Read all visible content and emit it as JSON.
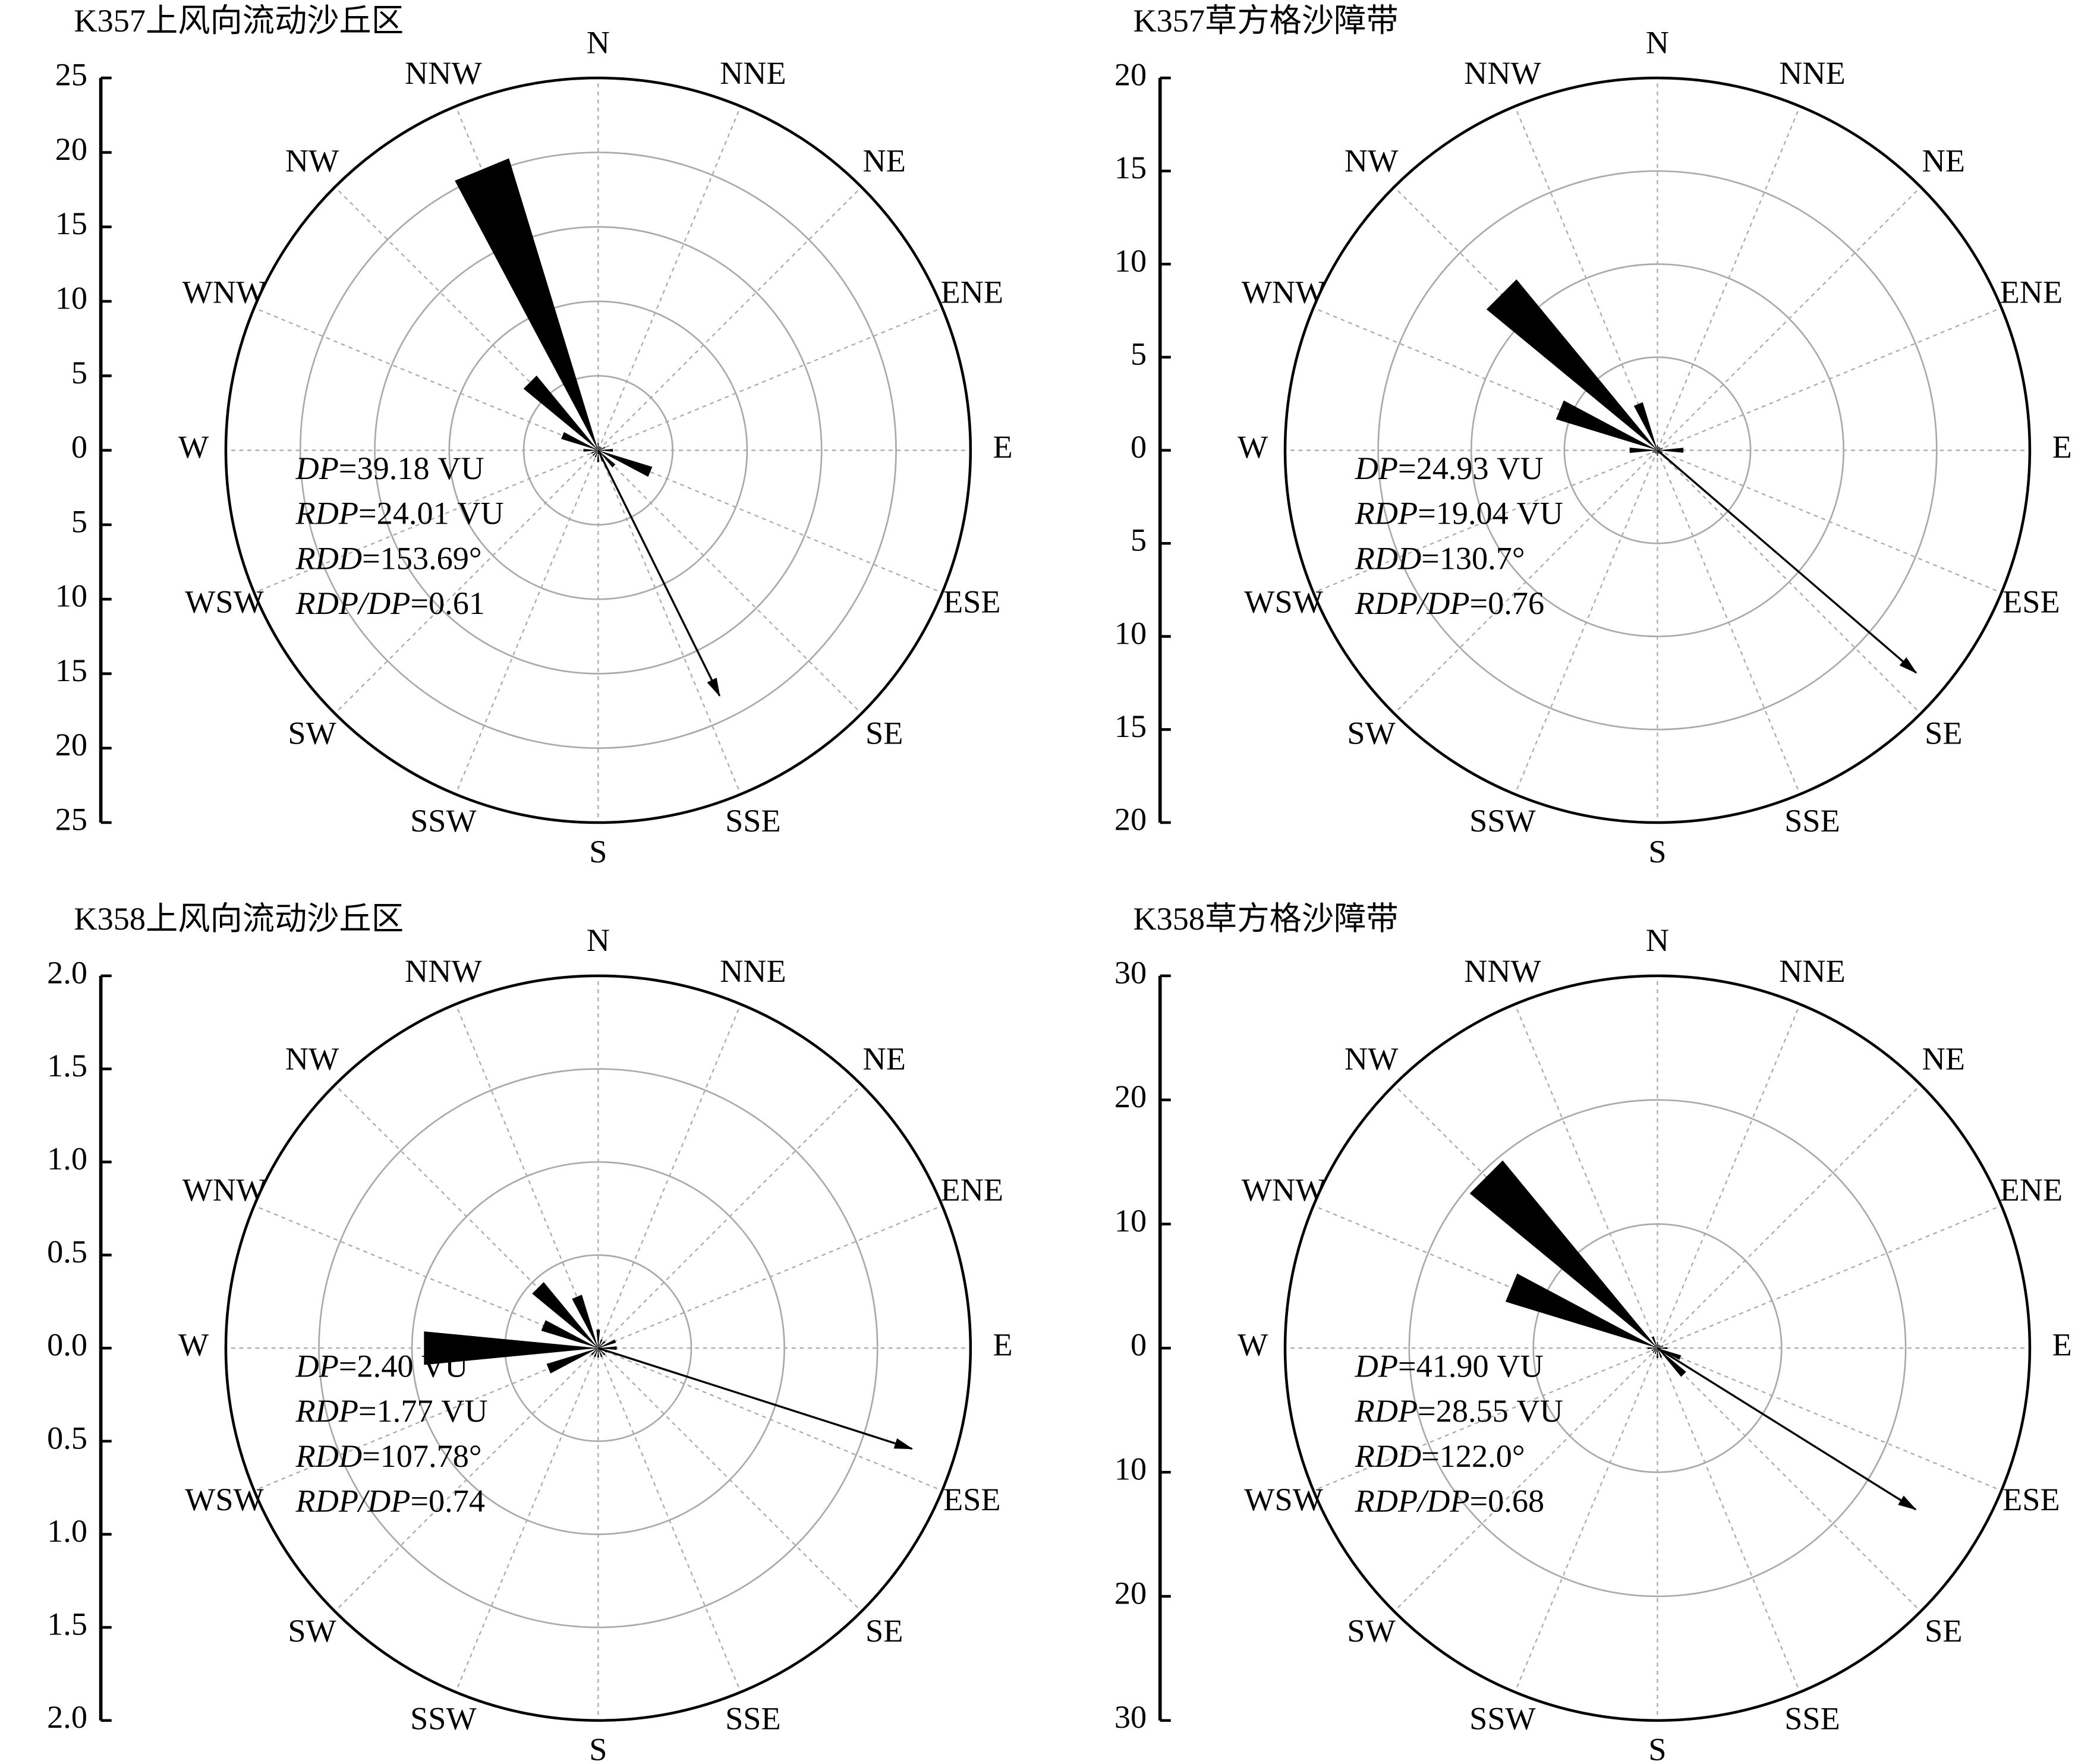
{
  "chart_data": [
    {
      "type": "rose",
      "title": "K357上风向流动沙丘区",
      "directions": [
        "N",
        "NNE",
        "NE",
        "ENE",
        "E",
        "ESE",
        "SE",
        "SSE",
        "S",
        "SSW",
        "SW",
        "WSW",
        "W",
        "WNW",
        "NW",
        "NNW"
      ],
      "values": [
        0.5,
        0.3,
        0.3,
        0.5,
        1,
        3.8,
        1.5,
        0.8,
        0.8,
        0.5,
        0.5,
        0.5,
        1,
        2.6,
        6.5,
        20.5
      ],
      "color": "#000000",
      "ylim": [
        0,
        25
      ],
      "yticks": [
        0,
        5,
        10,
        15,
        20,
        25
      ],
      "grid": true,
      "stats": [
        {
          "name": "DP",
          "sign": "=",
          "value": 39.18,
          "unit": "VU"
        },
        {
          "name": "RDP",
          "sign": "=",
          "value": 24.01,
          "unit": "VU"
        },
        {
          "name": "RDD",
          "sign": "=",
          "value": 153.69,
          "unit": "°"
        },
        {
          "name": "RDP/DP",
          "sign": "=",
          "value": 0.61
        }
      ]
    },
    {
      "type": "rose",
      "title": "K357草方格沙障带",
      "directions": [
        "N",
        "NNE",
        "NE",
        "ENE",
        "E",
        "ESE",
        "SE",
        "SSE",
        "S",
        "SSW",
        "SW",
        "WSW",
        "W",
        "WNW",
        "NW",
        "NNW"
      ],
      "values": [
        0.3,
        0.2,
        0.2,
        0.3,
        1.4,
        0.3,
        0.2,
        0.2,
        0.3,
        0.2,
        0.2,
        0.3,
        1.5,
        5.7,
        11.9,
        2.7
      ],
      "color": "#000000",
      "ylim": [
        0,
        20
      ],
      "yticks": [
        0,
        5,
        10,
        15,
        20
      ],
      "grid": true,
      "stats": [
        {
          "name": "DP",
          "sign": "=",
          "value": 24.93,
          "unit": "VU"
        },
        {
          "name": "RDP",
          "sign": "=",
          "value": 19.04,
          "unit": "VU"
        },
        {
          "name": "RDD",
          "sign": "=",
          "value": 130.7,
          "unit": "°"
        },
        {
          "name": "RDP/DP",
          "sign": "=",
          "value": 0.76
        }
      ]
    },
    {
      "type": "rose",
      "title": "K358上风向流动沙丘区",
      "directions": [
        "N",
        "NNE",
        "NE",
        "ENE",
        "E",
        "ESE",
        "SE",
        "SSE",
        "S",
        "SSW",
        "SW",
        "WSW",
        "W",
        "WNW",
        "NW",
        "NNW"
      ],
      "values": [
        0.1,
        0.05,
        0.05,
        0.1,
        0.1,
        0.05,
        0.05,
        0.05,
        0.05,
        0.05,
        0.05,
        0.29,
        0.94,
        0.32,
        0.46,
        0.3
      ],
      "color": "#000000",
      "ylim": [
        0,
        2.0
      ],
      "yticks": [
        {
          "value": 0,
          "label": "0.0"
        },
        0.5,
        {
          "value": 1,
          "label": "1.0"
        },
        1.5,
        {
          "value": 2,
          "label": "2.0"
        }
      ],
      "grid": true,
      "stats": [
        {
          "name": "DP",
          "sign": "=",
          "value": 2.4,
          "value_label": "2.40",
          "unit": "VU"
        },
        {
          "name": "RDP",
          "sign": "=",
          "value": 1.77,
          "unit": "VU"
        },
        {
          "name": "RDD",
          "sign": "=",
          "value": 107.78,
          "unit": "°"
        },
        {
          "name": "RDP/DP",
          "sign": "=",
          "value": 0.74
        }
      ]
    },
    {
      "type": "rose",
      "title": "K358草方格沙障带",
      "directions": [
        "N",
        "NNE",
        "NE",
        "ENE",
        "E",
        "ESE",
        "SE",
        "SSE",
        "S",
        "SSW",
        "SW",
        "WSW",
        "W",
        "WNW",
        "NW",
        "NNW"
      ],
      "values": [
        0.5,
        0.3,
        0.3,
        0.5,
        0.8,
        2,
        3,
        0.8,
        0.8,
        0.5,
        0.5,
        0.5,
        0.8,
        12.8,
        19.6,
        1
      ],
      "color": "#000000",
      "ylim": [
        0,
        30
      ],
      "yticks": [
        0,
        10,
        20,
        30
      ],
      "grid": true,
      "stats": [
        {
          "name": "DP",
          "sign": "=",
          "value": 41.9,
          "value_label": "41.90",
          "unit": "VU"
        },
        {
          "name": "RDP",
          "sign": "=",
          "value": 28.55,
          "unit": "VU"
        },
        {
          "name": "RDD",
          "sign": "=",
          "value": 122,
          "value_label": "122.0",
          "unit": "°"
        },
        {
          "name": "RDP/DP",
          "sign": "=",
          "value": 0.68
        }
      ]
    }
  ]
}
